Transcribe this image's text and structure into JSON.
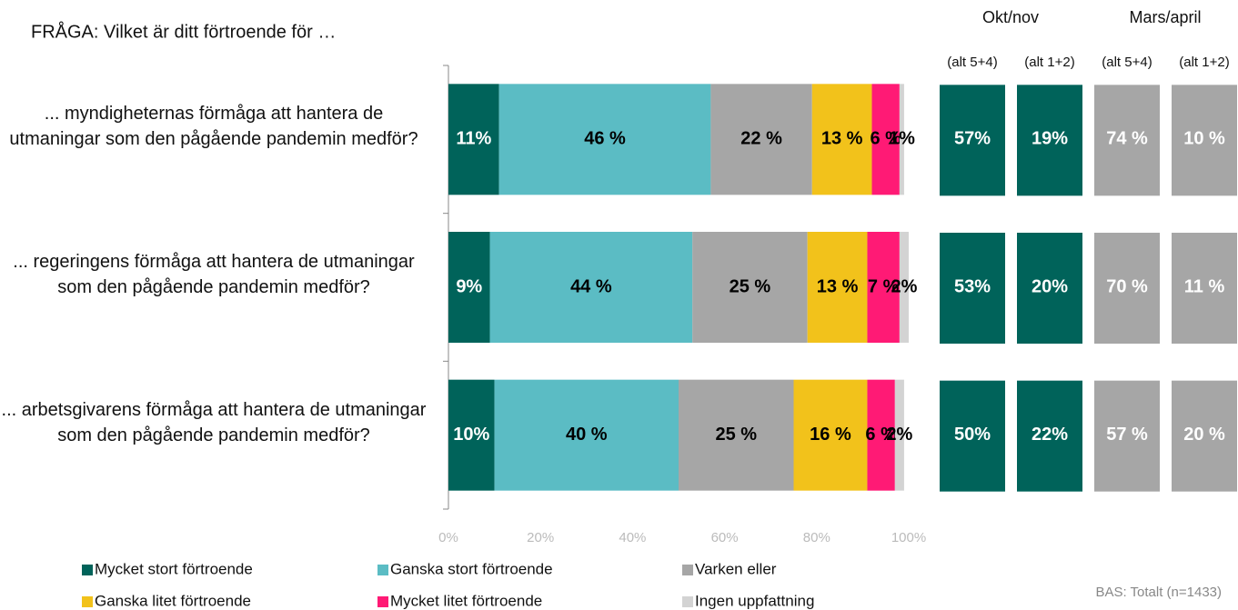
{
  "chart_data": {
    "type": "stacked_bar_horizontal",
    "question": "FRÅGA: Vilket är ditt förtroende för …",
    "categories": [
      "... myndigheternas förmåga att hantera de utmaningar som den pågående pandemin medför?",
      "... regeringens förmåga att hantera de utmaningar som den pågående pandemin medför?",
      "... arbetsgivarens förmåga att hantera de utmaningar som den pågående pandemin medför?"
    ],
    "series": [
      {
        "name": "Mycket stort förtroende",
        "color": "#00635a",
        "values": [
          11,
          9,
          10
        ],
        "value_labels": [
          "11%",
          "9%",
          "10%"
        ]
      },
      {
        "name": "Ganska stort förtroende",
        "color": "#5bbcc4",
        "values": [
          46,
          44,
          40
        ],
        "value_labels": [
          "46 %",
          "44 %",
          "40 %"
        ]
      },
      {
        "name": "Varken eller",
        "color": "#a6a6a6",
        "values": [
          22,
          25,
          25
        ],
        "value_labels": [
          "22 %",
          "25 %",
          "25 %"
        ]
      },
      {
        "name": "Ganska litet förtroende",
        "color": "#f2c21b",
        "values": [
          13,
          13,
          16
        ],
        "value_labels": [
          "13 %",
          "13 %",
          "16 %"
        ]
      },
      {
        "name": "Mycket litet förtroende",
        "color": "#ff1a75",
        "values": [
          6,
          7,
          6
        ],
        "value_labels": [
          "6 %",
          "7 %",
          "6 %"
        ]
      },
      {
        "name": "Ingen uppfattning",
        "color": "#d3d3d3",
        "values": [
          1,
          2,
          2
        ],
        "value_labels": [
          "1%",
          "2%",
          "2%"
        ]
      }
    ],
    "xlim": [
      0,
      100
    ],
    "xticks": [
      {
        "value": 0,
        "label": "0%"
      },
      {
        "value": 20,
        "label": "20%"
      },
      {
        "value": 40,
        "label": "40%"
      },
      {
        "value": 60,
        "label": "60%"
      },
      {
        "value": 80,
        "label": "80%"
      },
      {
        "value": 100,
        "label": "100%"
      }
    ],
    "comparison": [
      {
        "name": "Okt/nov",
        "color": "#00635a",
        "columns": [
          {
            "name": "(alt 5+4)",
            "values": [
              "57%",
              "53%",
              "50%"
            ]
          },
          {
            "name": "(alt 1+2)",
            "values": [
              "19%",
              "20%",
              "22%"
            ]
          }
        ]
      },
      {
        "name": "Mars/april",
        "color": "#a6a6a6",
        "columns": [
          {
            "name": "(alt 5+4)",
            "values": [
              "74 %",
              "70 %",
              "57 %"
            ]
          },
          {
            "name": "(alt 1+2)",
            "values": [
              "10 %",
              "11 %",
              "20 %"
            ]
          }
        ]
      }
    ],
    "base": "BAS: Totalt (n=1433)"
  }
}
